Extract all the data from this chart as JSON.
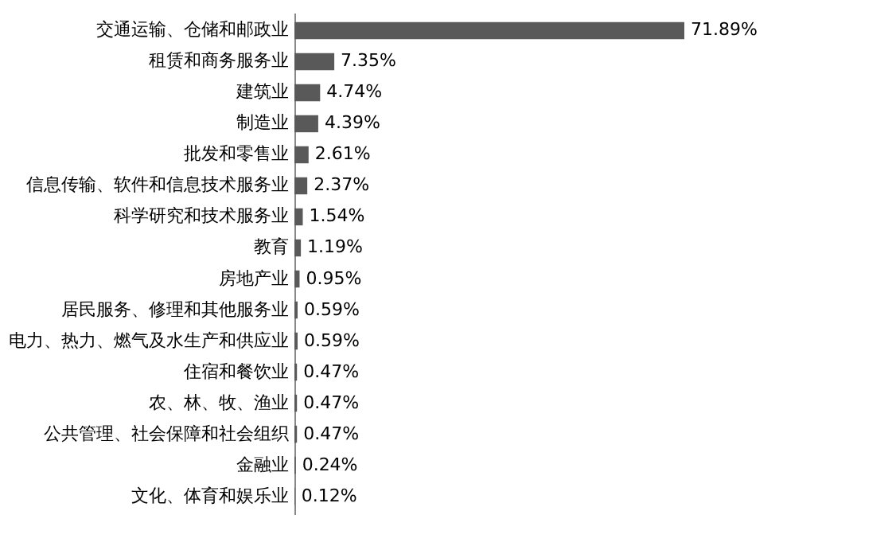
{
  "chart_data": {
    "type": "bar",
    "orientation": "horizontal",
    "categories": [
      "交通运输、仓储和邮政业",
      "租赁和商务服务业",
      "建筑业",
      "制造业",
      "批发和零售业",
      "信息传输、软件和信息技术服务业",
      "科学研究和技术服务业",
      "教育",
      "房地产业",
      "居民服务、修理和其他服务业",
      "电力、热力、燃气及水生产和供应业",
      "住宿和餐饮业",
      "农、林、牧、渔业",
      "公共管理、社会保障和社会组织",
      "金融业",
      "文化、体育和娱乐业"
    ],
    "values": [
      71.89,
      7.35,
      4.74,
      4.39,
      2.61,
      2.37,
      1.54,
      1.19,
      0.95,
      0.59,
      0.59,
      0.47,
      0.47,
      0.47,
      0.24,
      0.12
    ],
    "value_labels": [
      "71.89%",
      "7.35%",
      "4.74%",
      "4.39%",
      "2.61%",
      "2.37%",
      "1.54%",
      "1.19%",
      "0.95%",
      "0.59%",
      "0.59%",
      "0.47%",
      "0.47%",
      "0.47%",
      "0.24%",
      "0.12%"
    ],
    "color": "#595959"
  }
}
